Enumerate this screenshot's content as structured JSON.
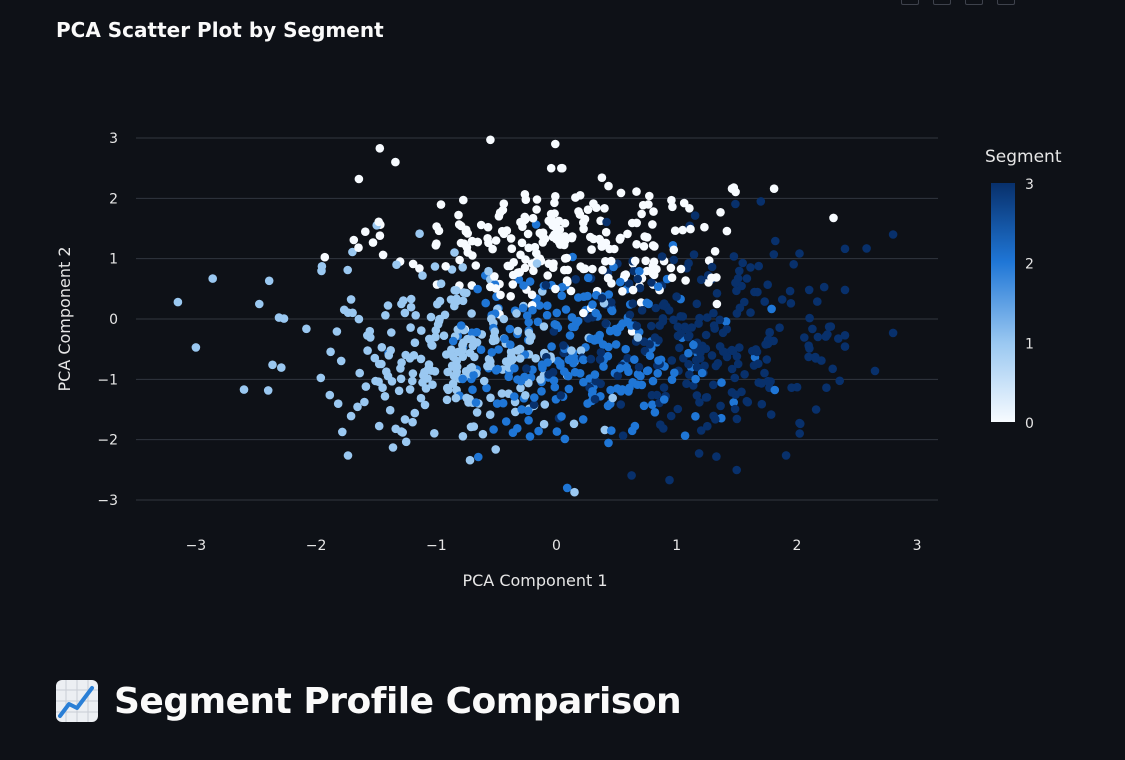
{
  "chart_data": {
    "type": "scatter",
    "title": "PCA Scatter Plot by Segment",
    "xlabel": "PCA Component 1",
    "ylabel": "PCA Component 2",
    "xlim": [
      -3.5,
      3.15
    ],
    "ylim": [
      -3.3,
      3.1
    ],
    "xticks": [
      -3,
      -2,
      -1,
      0,
      1,
      2,
      3
    ],
    "yticks": [
      -3,
      -2,
      -1,
      0,
      1,
      2,
      3
    ],
    "grid": true,
    "color_axis": {
      "title": "Segment",
      "range": [
        0,
        3
      ],
      "ticks": [
        0,
        1,
        2,
        3
      ],
      "colorscale": [
        "#f7fbff",
        "#9ac8f1",
        "#1f76d6",
        "#08306b"
      ]
    },
    "segment_centers": [
      {
        "segment": 0,
        "x": 0.05,
        "y": 1.25
      },
      {
        "segment": 1,
        "x": -0.85,
        "y": -0.55
      },
      {
        "segment": 2,
        "x": 0.2,
        "y": -0.55
      },
      {
        "segment": 3,
        "x": 1.25,
        "y": -0.35
      }
    ],
    "points_per_segment": 245,
    "points": [
      {
        "x": -0.55,
        "y": 2.97,
        "segment": 0
      },
      {
        "x": -0.01,
        "y": 2.9,
        "segment": 0
      },
      {
        "x": -1.47,
        "y": 2.83,
        "segment": 0
      },
      {
        "x": -1.34,
        "y": 2.6,
        "segment": 0
      },
      {
        "x": -3.15,
        "y": 0.28,
        "segment": 1
      },
      {
        "x": -3.0,
        "y": -0.47,
        "segment": 1
      },
      {
        "x": -2.86,
        "y": 0.67,
        "segment": 1
      },
      {
        "x": -2.6,
        "y": -1.17,
        "segment": 1
      },
      {
        "x": -1.36,
        "y": -2.13,
        "segment": 1
      },
      {
        "x": -0.72,
        "y": -2.34,
        "segment": 1
      },
      {
        "x": 0.15,
        "y": -2.87,
        "segment": 1
      },
      {
        "x": 0.94,
        "y": -2.67,
        "segment": 3
      },
      {
        "x": 1.33,
        "y": -2.28,
        "segment": 3
      },
      {
        "x": 1.91,
        "y": -2.26,
        "segment": 3
      },
      {
        "x": 2.16,
        "y": -1.5,
        "segment": 3
      },
      {
        "x": 2.65,
        "y": -0.86,
        "segment": 3
      },
      {
        "x": 2.8,
        "y": -0.23,
        "segment": 3
      },
      {
        "x": 2.8,
        "y": 1.4,
        "segment": 3
      },
      {
        "x": 2.58,
        "y": 1.17,
        "segment": 3
      },
      {
        "x": 1.7,
        "y": 1.95,
        "segment": 3
      },
      {
        "x": 1.81,
        "y": 2.16,
        "segment": 0
      },
      {
        "x": 1.46,
        "y": 2.16,
        "segment": 0
      }
    ]
  },
  "section": {
    "icon": "chart-increasing-icon",
    "title": "Segment Profile Comparison"
  }
}
